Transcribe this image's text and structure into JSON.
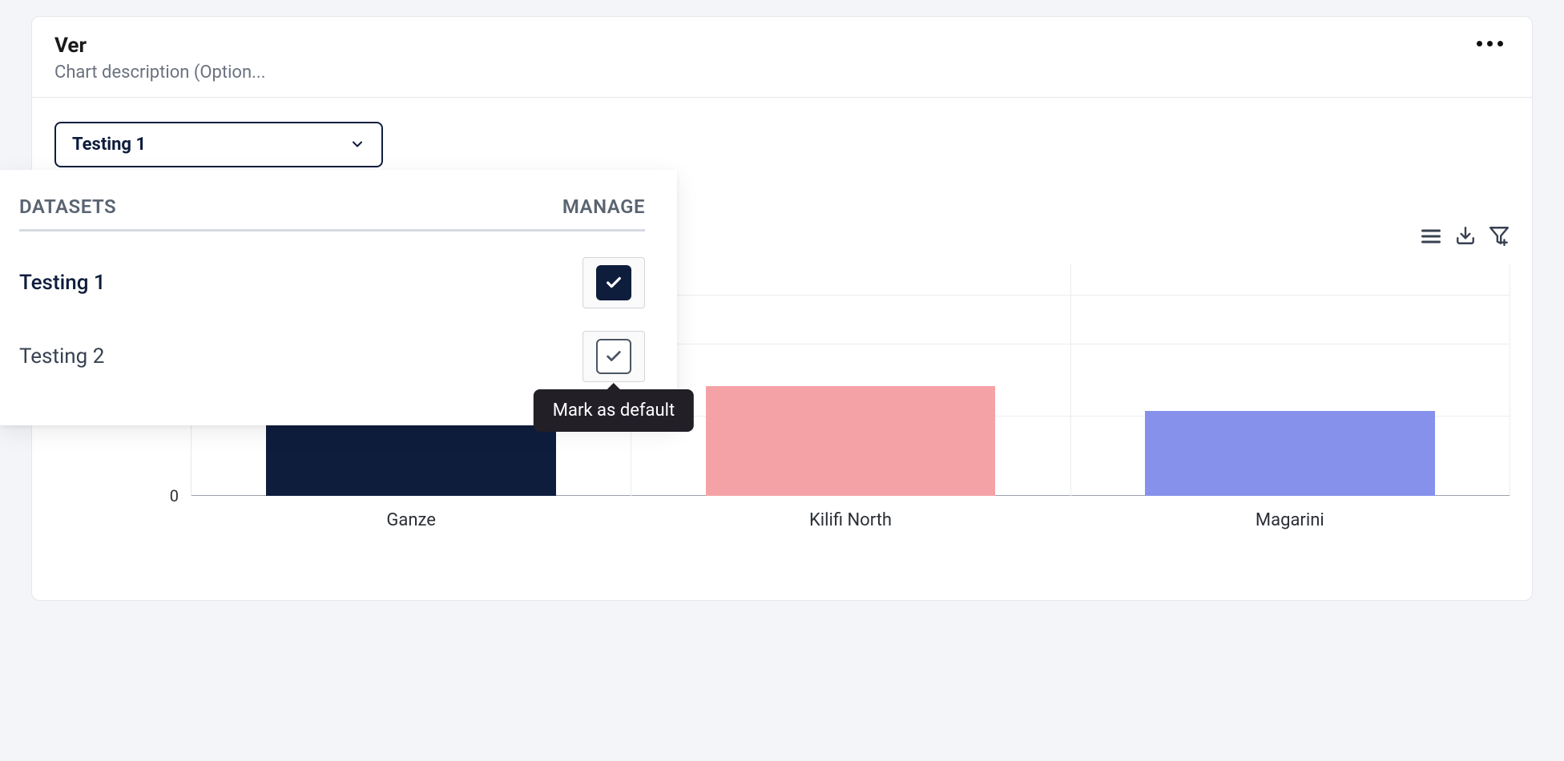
{
  "card": {
    "title": "Ver",
    "description": "Chart description (Option..."
  },
  "dataset_select": {
    "selected_label": "Testing 1"
  },
  "datasets_popover": {
    "header_left": "DATASETS",
    "header_right": "MANAGE",
    "tooltip": "Mark as default",
    "items": [
      {
        "label": "Testing 1",
        "is_default": true
      },
      {
        "label": "Testing 2",
        "is_default": false
      }
    ]
  },
  "chart": {
    "type": "bar",
    "categories": [
      "Ganze",
      "Kilifi North",
      "Magarini"
    ],
    "values": [
      55,
      26,
      20
    ],
    "bar_colors": [
      "#0f1d3d",
      "#f5a2a6",
      "#8591eb"
    ],
    "ymin": 0,
    "ymax": 55,
    "visible_ytick": 0,
    "grid_lines": [
      0.135,
      0.345,
      0.655
    ],
    "bar_width_pct": 22,
    "background_color": "#ffffff",
    "grid_color": "#ebedf1",
    "title_fontsize": 26,
    "label_fontsize": 22
  },
  "icons": {
    "more": "more",
    "chevron_down": "chevron-down",
    "hamburger": "hamburger",
    "download": "download",
    "filter_plus": "filter-plus",
    "check": "check"
  }
}
